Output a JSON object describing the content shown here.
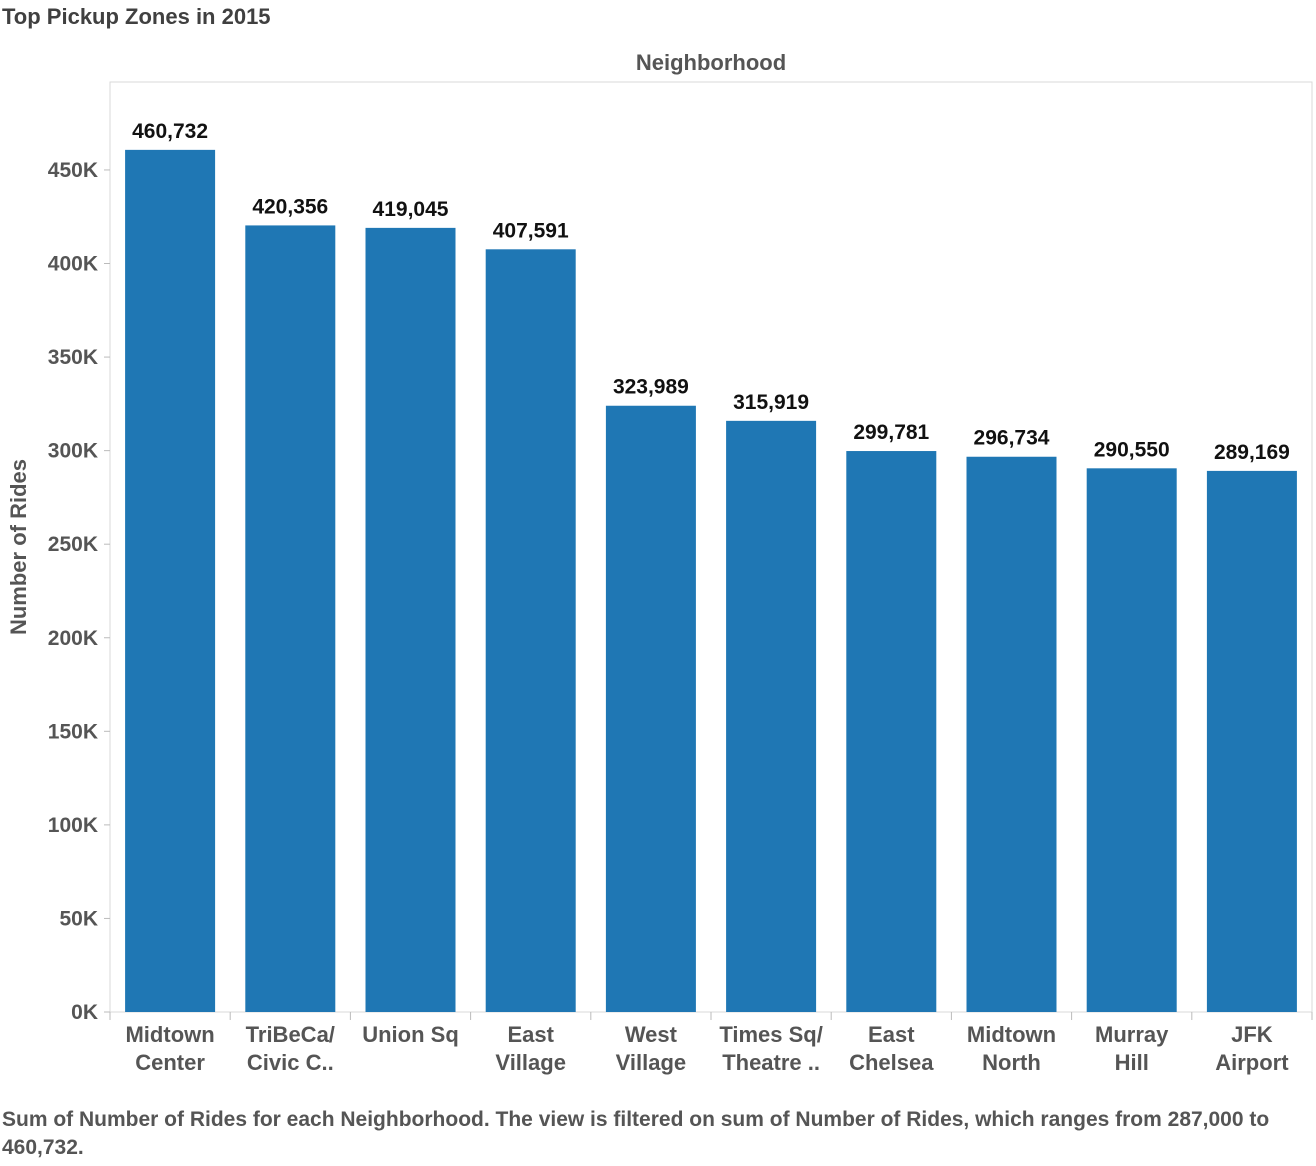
{
  "title": "Top Pickup Zones in 2015",
  "caption": "Sum of Number of Rides for each Neighborhood. The view is filtered on sum of Number of Rides, which ranges from 287,000 to 460,732.",
  "colors": {
    "bar": "#1f77b4",
    "grid_border": "#d9d9d9",
    "text": "#555555"
  },
  "chart_data": {
    "type": "bar",
    "title": "Top Pickup Zones in 2015",
    "xlabel": "Neighborhood",
    "ylabel": "Number of Rides",
    "ylim": [
      0,
      497000
    ],
    "yticks": [
      0,
      50000,
      100000,
      150000,
      200000,
      250000,
      300000,
      350000,
      400000,
      450000
    ],
    "ytick_labels": [
      "0K",
      "50K",
      "100K",
      "150K",
      "200K",
      "250K",
      "300K",
      "350K",
      "400K",
      "450K"
    ],
    "categories": [
      [
        "Midtown",
        "Center"
      ],
      [
        "TriBeCa/",
        "Civic C.."
      ],
      [
        "Union Sq"
      ],
      [
        "East",
        "Village"
      ],
      [
        "West",
        "Village"
      ],
      [
        "Times Sq/",
        "Theatre .."
      ],
      [
        "East",
        "Chelsea"
      ],
      [
        "Midtown",
        "North"
      ],
      [
        "Murray",
        "Hill"
      ],
      [
        "JFK",
        "Airport"
      ]
    ],
    "values": [
      460732,
      420356,
      419045,
      407591,
      323989,
      315919,
      299781,
      296734,
      290550,
      289169
    ],
    "value_labels": [
      "460,732",
      "420,356",
      "419,045",
      "407,591",
      "323,989",
      "315,919",
      "299,781",
      "296,734",
      "290,550",
      "289,169"
    ],
    "grid": false,
    "legend": "none"
  }
}
